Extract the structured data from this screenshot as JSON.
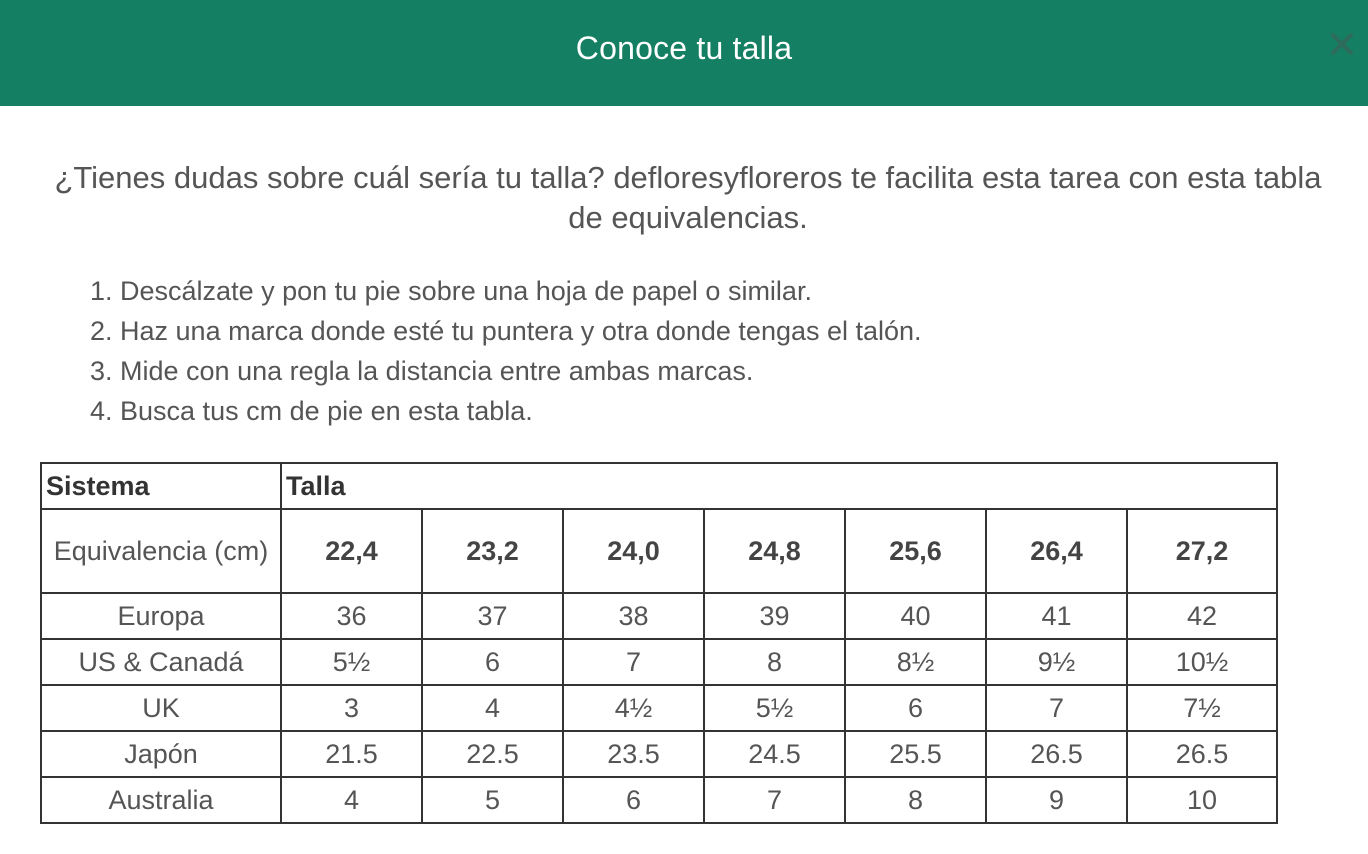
{
  "header": {
    "title": "Conoce tu talla",
    "close_icon": "close-icon",
    "background": "#147f62"
  },
  "intro": {
    "text": "¿Tienes dudas sobre cuál sería tu talla? defloresyfloreros te facilita esta tarea con esta tabla de equivalencias."
  },
  "steps": [
    "1. Descálzate y pon tu pie sobre una hoja de papel o similar.",
    "2. Haz una marca donde esté tu puntera y otra donde tengas el talón.",
    "3. Mide con una regla la distancia entre ambas marcas.",
    "4. Busca tus cm de pie en esta tabla."
  ],
  "table": {
    "header": {
      "system": "Sistema",
      "size": "Talla"
    },
    "equivalence": {
      "label": "Equivalencia (cm)",
      "values": [
        "22,4",
        "23,2",
        "24,0",
        "24,8",
        "25,6",
        "26,4",
        "27,2"
      ]
    },
    "rows": [
      {
        "label": "Europa",
        "values": [
          "36",
          "37",
          "38",
          "39",
          "40",
          "41",
          "42"
        ]
      },
      {
        "label": "US & Canadá",
        "values": [
          "5½",
          "6",
          "7",
          "8",
          "8½",
          "9½",
          "10½"
        ]
      },
      {
        "label": "UK",
        "values": [
          "3",
          "4",
          "4½",
          "5½",
          "6",
          "7",
          "7½"
        ]
      },
      {
        "label": "Japón",
        "values": [
          "21.5",
          "22.5",
          "23.5",
          "24.5",
          "25.5",
          "26.5",
          "26.5"
        ]
      },
      {
        "label": "Australia",
        "values": [
          "4",
          "5",
          "6",
          "7",
          "8",
          "9",
          "10"
        ]
      }
    ]
  }
}
